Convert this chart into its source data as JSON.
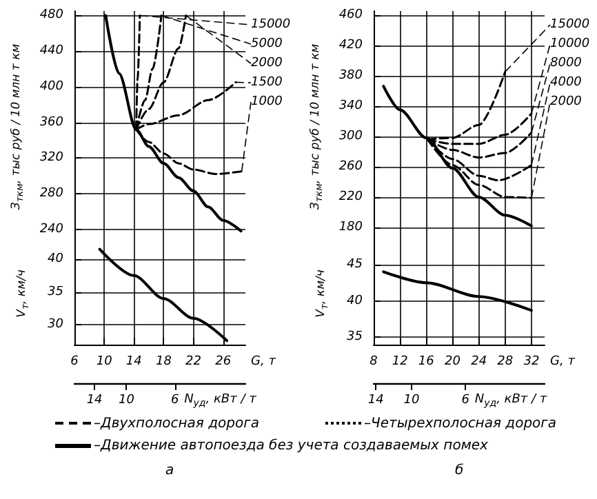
{
  "chart_data": [
    {
      "type": "line",
      "ylabel": "З$_{ткм}$, тыс руб / 10 млн т км",
      "xlim": [
        6,
        29
      ],
      "xticks": [
        6,
        10,
        14,
        18,
        22,
        26
      ],
      "ylim": [
        225,
        485
      ],
      "yticks": [
        240,
        280,
        320,
        360,
        400,
        440,
        480
      ],
      "grid": true,
      "marker": "none",
      "tick_labels": "y",
      "series": [
        {
          "name": "15000",
          "color": "#000000",
          "line_style": "dashed",
          "x": [
            14.3,
            14.5,
            14.8
          ],
          "values": [
            352,
            410,
            480
          ]
        },
        {
          "name": "5000",
          "color": "#000000",
          "line_style": "dashed",
          "x": [
            14.3,
            15.5,
            16.5,
            17.7
          ],
          "values": [
            352,
            385,
            420,
            480
          ]
        },
        {
          "name": "2000",
          "color": "#000000",
          "line_style": "dashed",
          "x": [
            14.3,
            16,
            18,
            20,
            21
          ],
          "values": [
            352,
            375,
            405,
            443,
            480
          ]
        },
        {
          "name": "1500",
          "color": "#000000",
          "line_style": "dashed",
          "x": [
            14.3,
            16,
            20,
            24,
            27.7
          ],
          "values": [
            352,
            358,
            368,
            385,
            405
          ]
        },
        {
          "name": "1000",
          "color": "#000000",
          "line_style": "dashed",
          "x": [
            14.3,
            16,
            18,
            20,
            22,
            25,
            28.5
          ],
          "values": [
            352,
            338,
            325,
            314,
            307,
            302,
            305
          ]
        },
        {
          "color": "#000000",
          "line_style": "solid",
          "x": [
            10.2,
            12,
            14.3,
            16,
            18,
            20,
            22,
            24,
            26,
            28.4
          ],
          "values": [
            480,
            415,
            352,
            333,
            314,
            298,
            283,
            265,
            250,
            238
          ]
        }
      ]
    },
    {
      "type": "line",
      "xlabel": "G, т",
      "x2label": "N$_{уд}$, кВт / т",
      "ylabel": "V$_{т}$, км/ч",
      "xlim": [
        6,
        29
      ],
      "xticks": [
        6,
        10,
        14,
        18,
        22,
        26
      ],
      "x2lim": [
        17.3,
        2.85
      ],
      "x2ticks": [
        14,
        10,
        6
      ],
      "log": "x2",
      "ylim": [
        27,
        42.5
      ],
      "yticks": [
        30,
        35,
        40
      ],
      "grid": true,
      "marker": "none",
      "series": [
        {
          "color": "#000000",
          "line_style": "solid",
          "x": [
            9.4,
            14,
            18,
            22,
            26.5
          ],
          "values": [
            41.5,
            37.5,
            34,
            31,
            27.6
          ]
        }
      ],
      "annotations": [
        "–Двухполосная дорога",
        "–Движение автопоезда без учета создаваемых помех",
        "а"
      ]
    },
    {
      "type": "line",
      "ylabel": "З$_{ткм}$, тыс руб / 10 млн т км",
      "xlim": [
        8,
        34
      ],
      "xticks": [
        8,
        12,
        16,
        20,
        24,
        28,
        32
      ],
      "ylim": [
        160,
        465
      ],
      "yticks": [
        180,
        220,
        260,
        300,
        340,
        380,
        420,
        460
      ],
      "grid": true,
      "marker": "none",
      "tick_labels": "y",
      "series": [
        {
          "name": "15000",
          "color": "#000000",
          "line_style": "dashed",
          "x": [
            16.2,
            20,
            24,
            28
          ],
          "values": [
            296,
            298,
            315,
            385
          ]
        },
        {
          "name": "10000",
          "color": "#000000",
          "line_style": "dashed",
          "x": [
            16.2,
            20,
            24,
            28,
            32
          ],
          "values": [
            296,
            290,
            290,
            302,
            330
          ]
        },
        {
          "name": "8000",
          "color": "#000000",
          "line_style": "dashed",
          "x": [
            16.2,
            20,
            24,
            28,
            32
          ],
          "values": [
            296,
            282,
            272,
            278,
            305
          ]
        },
        {
          "name": "4000",
          "color": "#000000",
          "line_style": "dashed",
          "x": [
            16.2,
            20,
            24,
            27,
            32
          ],
          "values": [
            296,
            270,
            248,
            242,
            262
          ]
        },
        {
          "name": "2000",
          "color": "#000000",
          "line_style": "dashed",
          "x": [
            16.2,
            20,
            24,
            28,
            32
          ],
          "values": [
            296,
            262,
            236,
            220,
            219
          ]
        },
        {
          "color": "#000000",
          "line_style": "solid",
          "x": [
            9.5,
            12,
            16,
            20,
            24,
            28,
            32
          ],
          "values": [
            366,
            335,
            298,
            258,
            220,
            196,
            182
          ]
        }
      ]
    },
    {
      "type": "line",
      "xlabel": "G, т",
      "x2label": "N$_{уд}$, кВт / т",
      "ylabel": "V$_{т}$, км/ч",
      "xlim": [
        8,
        34
      ],
      "xticks": [
        8,
        12,
        16,
        20,
        24,
        28,
        32
      ],
      "x2lim": [
        14.3,
        2.84
      ],
      "x2ticks": [
        14,
        10,
        6
      ],
      "log": "x2",
      "ylim": [
        34,
        48
      ],
      "yticks": [
        35,
        40,
        45
      ],
      "grid": true,
      "marker": "none",
      "series": [
        {
          "color": "#000000",
          "line_style": "solid",
          "x": [
            9.5,
            16,
            24,
            32
          ],
          "values": [
            44,
            42.5,
            40.6,
            38.7
          ]
        }
      ],
      "annotations": [
        "–Четырехполосная дорога",
        "б"
      ]
    }
  ]
}
